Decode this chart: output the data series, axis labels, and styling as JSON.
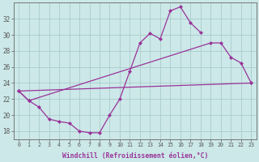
{
  "bg_color": "#cce8e8",
  "grid_color": "#aacccc",
  "line_color": "#993399",
  "marker": "D",
  "marker_size": 2.0,
  "line_width": 0.9,
  "line1_x": [
    0,
    1,
    2,
    3,
    4,
    5,
    6,
    7,
    8,
    9,
    10,
    11,
    12,
    13,
    14,
    15,
    16,
    17,
    18
  ],
  "line1_y": [
    23.0,
    21.8,
    21.0,
    19.5,
    19.2,
    19.0,
    18.0,
    17.8,
    17.8,
    20.0,
    22.0,
    25.5,
    29.0,
    30.2,
    29.5,
    33.0,
    33.5,
    31.5,
    30.3
  ],
  "line2_x": [
    0,
    1,
    19,
    20,
    21,
    22,
    23
  ],
  "line2_y": [
    23.0,
    21.8,
    29.0,
    29.0,
    27.2,
    26.5,
    24.0
  ],
  "line3_x": [
    0,
    23
  ],
  "line3_y": [
    23.0,
    24.0
  ],
  "xlabel": "Windchill (Refroidissement éolien,°C)",
  "xlim": [
    -0.5,
    23.5
  ],
  "ylim": [
    17.0,
    34.0
  ],
  "yticks": [
    18,
    20,
    22,
    24,
    26,
    28,
    30,
    32
  ],
  "xticks": [
    0,
    1,
    2,
    3,
    4,
    5,
    6,
    7,
    8,
    9,
    10,
    11,
    12,
    13,
    14,
    15,
    16,
    17,
    18,
    19,
    20,
    21,
    22,
    23
  ],
  "xtick_labels": [
    "0",
    "1",
    "2",
    "3",
    "4",
    "5",
    "6",
    "7",
    "8",
    "9",
    "10",
    "11",
    "12",
    "13",
    "14",
    "15",
    "16",
    "17",
    "18",
    "19",
    "20",
    "21",
    "22",
    "23"
  ]
}
